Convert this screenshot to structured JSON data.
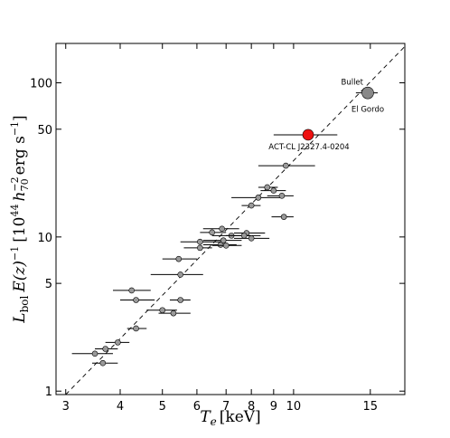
{
  "chart_data": {
    "type": "scatter",
    "x_scale": "log",
    "y_scale": "log",
    "xlim": [
      2.85,
      18
    ],
    "ylim": [
      0.95,
      180
    ],
    "x_ticks": [
      {
        "value": 3,
        "label": "3"
      },
      {
        "value": 4,
        "label": "4"
      },
      {
        "value": 5,
        "label": "5"
      },
      {
        "value": 6,
        "label": "6"
      },
      {
        "value": 7,
        "label": "7"
      },
      {
        "value": 8,
        "label": "8"
      },
      {
        "value": 9,
        "label": "9"
      },
      {
        "value": 10,
        "label": "10"
      },
      {
        "value": 15,
        "label": "15"
      }
    ],
    "y_ticks": [
      {
        "value": 1,
        "label": "1"
      },
      {
        "value": 5,
        "label": "5"
      },
      {
        "value": 10,
        "label": "10"
      },
      {
        "value": 50,
        "label": "50"
      },
      {
        "value": 100,
        "label": "100"
      }
    ],
    "xlabel_main": "T",
    "xlabel_sub": "e",
    "xlabel_unit": "[keV]",
    "ylabel": {
      "L": "L",
      "bol": "bol",
      "E": "E(z)",
      "exp_m1": "−1",
      "open": "[10",
      "exp_44": "44",
      "h": "h",
      "h_sub": "70",
      "h_exp": "−2",
      "unit": "erg s",
      "close": "]"
    },
    "fit_line": {
      "x": [
        3,
        18
      ],
      "y": [
        0.95,
        172
      ]
    },
    "sample_points": [
      {
        "x": 3.5,
        "y": 1.75,
        "x_lo": 3.1,
        "x_hi": 3.85
      },
      {
        "x": 3.65,
        "y": 1.52,
        "x_lo": 3.45,
        "x_hi": 3.95
      },
      {
        "x": 3.7,
        "y": 1.88,
        "x_lo": 3.5,
        "x_hi": 3.95
      },
      {
        "x": 3.95,
        "y": 2.07,
        "x_lo": 3.7,
        "x_hi": 4.2
      },
      {
        "x": 4.35,
        "y": 2.55,
        "x_lo": 4.15,
        "x_hi": 4.6
      },
      {
        "x": 4.25,
        "y": 4.5,
        "x_lo": 3.85,
        "x_hi": 4.7
      },
      {
        "x": 4.35,
        "y": 3.9,
        "x_lo": 4.0,
        "x_hi": 4.8
      },
      {
        "x": 5.0,
        "y": 3.35,
        "x_lo": 4.6,
        "x_hi": 5.4
      },
      {
        "x": 5.3,
        "y": 3.2,
        "x_lo": 4.9,
        "x_hi": 5.8
      },
      {
        "x": 5.5,
        "y": 3.9,
        "x_lo": 5.2,
        "x_hi": 5.8
      },
      {
        "x": 5.5,
        "y": 5.7,
        "x_lo": 4.7,
        "x_hi": 6.2
      },
      {
        "x": 5.45,
        "y": 7.2,
        "x_lo": 5.0,
        "x_hi": 6.0
      },
      {
        "x": 6.1,
        "y": 8.5,
        "x_lo": 5.6,
        "x_hi": 6.5
      },
      {
        "x": 6.1,
        "y": 9.3,
        "x_lo": 5.5,
        "x_hi": 6.8
      },
      {
        "x": 6.5,
        "y": 10.7,
        "x_lo": 6.1,
        "x_hi": 7.0
      },
      {
        "x": 6.8,
        "y": 8.9,
        "x_lo": 6.2,
        "x_hi": 7.4
      },
      {
        "x": 6.9,
        "y": 9.5,
        "x_lo": 6.2,
        "x_hi": 7.6
      },
      {
        "x": 6.85,
        "y": 11.3,
        "x_lo": 6.2,
        "x_hi": 7.5
      },
      {
        "x": 7.0,
        "y": 8.8,
        "x_lo": 6.5,
        "x_hi": 7.6
      },
      {
        "x": 7.2,
        "y": 10.2,
        "x_lo": 6.5,
        "x_hi": 8.0
      },
      {
        "x": 7.8,
        "y": 10.6,
        "x_lo": 7.3,
        "x_hi": 8.6
      },
      {
        "x": 7.7,
        "y": 10.2,
        "x_lo": 7.0,
        "x_hi": 8.4
      },
      {
        "x": 8.0,
        "y": 9.8,
        "x_lo": 7.3,
        "x_hi": 8.8
      },
      {
        "x": 8.0,
        "y": 16.0,
        "x_lo": 7.6,
        "x_hi": 8.4
      },
      {
        "x": 8.3,
        "y": 18.0,
        "x_lo": 7.2,
        "x_hi": 9.5
      },
      {
        "x": 8.7,
        "y": 21.0,
        "x_lo": 8.3,
        "x_hi": 9.2
      },
      {
        "x": 9.0,
        "y": 20.0,
        "x_lo": 8.4,
        "x_hi": 9.6
      },
      {
        "x": 9.4,
        "y": 18.5,
        "x_lo": 8.7,
        "x_hi": 10.0
      },
      {
        "x": 9.5,
        "y": 13.5,
        "x_lo": 8.9,
        "x_hi": 10.0
      },
      {
        "x": 9.6,
        "y": 29.0,
        "x_lo": 8.3,
        "x_hi": 11.2
      }
    ],
    "highlight": {
      "name": "ACT-CL J2327.4-0204",
      "x": 10.8,
      "y": 46.0,
      "x_lo": 9.0,
      "x_hi": 12.6,
      "color": "#ee1111"
    },
    "named_points": [
      {
        "name": "Bullet",
        "x": 14.8,
        "y": 86.0,
        "x_lo": 13.9,
        "x_hi": 15.6
      },
      {
        "name": "El Gordo",
        "x": 14.8,
        "y": 86.0
      }
    ],
    "colors": {
      "sample_fill": "#9a9a9a",
      "named_fill": "#888888",
      "line": "#000000"
    }
  }
}
